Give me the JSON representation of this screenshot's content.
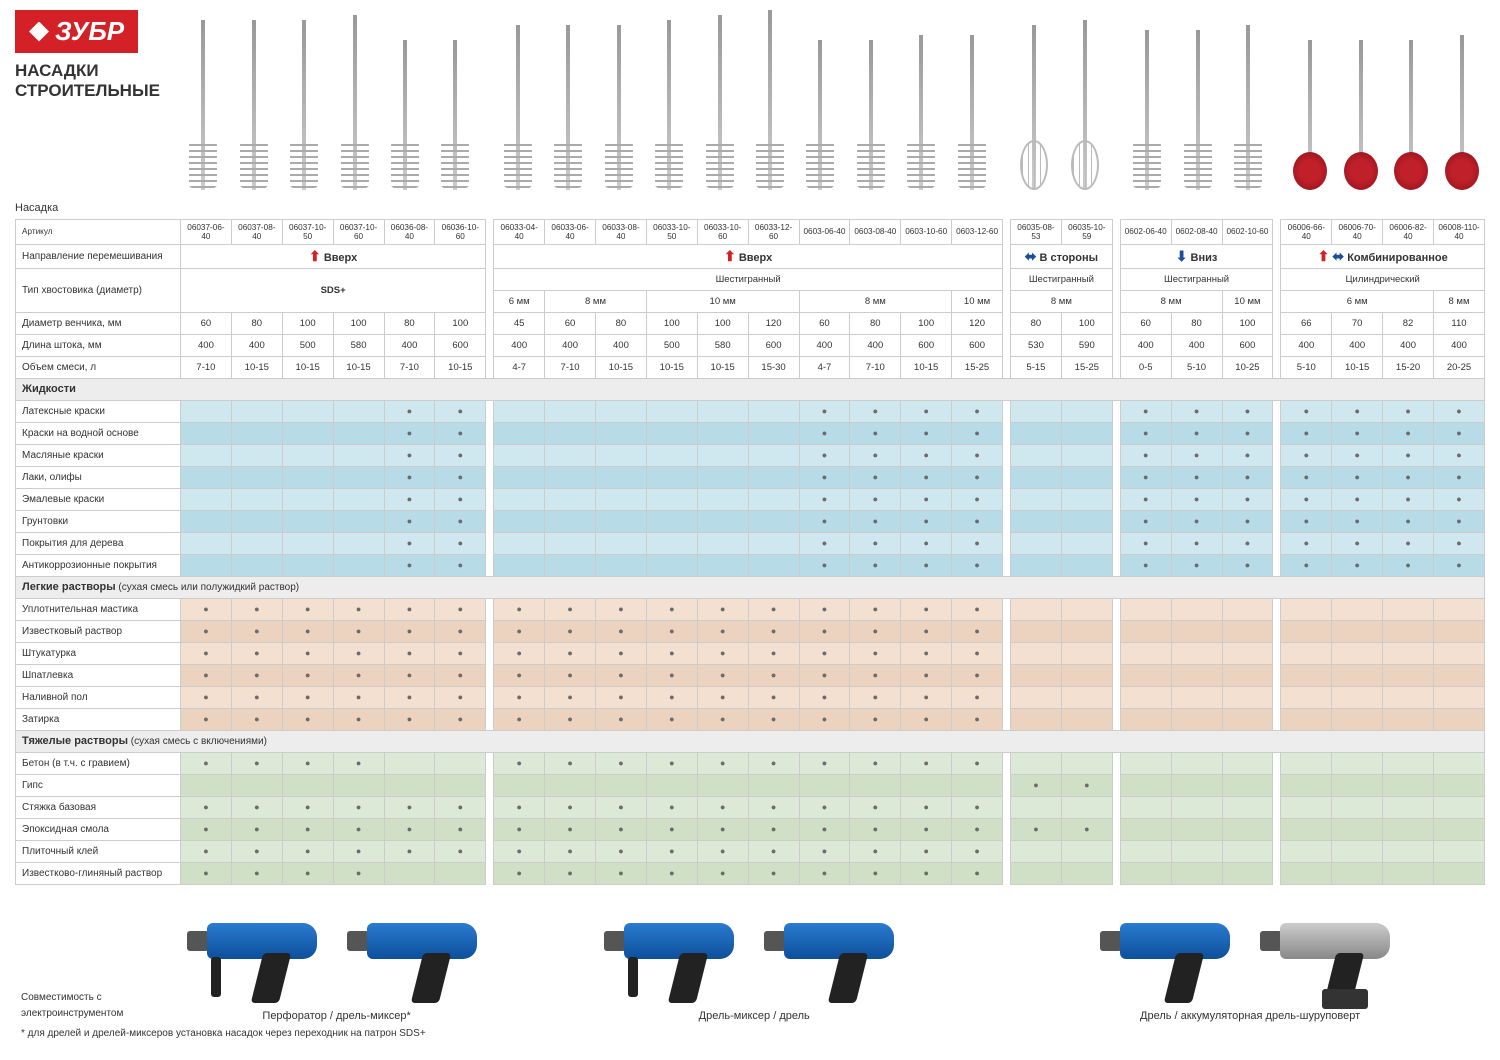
{
  "brand": "ЗУБР",
  "title_line1": "НАСАДКИ",
  "title_line2": "СТРОИТЕЛЬНЫЕ",
  "nasadka_label": "Насадка",
  "row_labels": {
    "artikul": "Артикул",
    "direction": "Направление перемешивания",
    "shank": "Тип хвостовика (диаметр)",
    "diameter": "Диаметр венчика, мм",
    "length": "Длина штока, мм",
    "volume": "Объем смеси, л",
    "compat": "Совместимость с электроинструментом"
  },
  "directions": {
    "g1": "Вверх",
    "g2": "Вверх",
    "g3": "В стороны",
    "g4": "Вниз",
    "g5": "Комбинированное"
  },
  "shank_types": {
    "sds": "SDS+",
    "hex": "Шестигранный",
    "cyl": "Цилиндрический"
  },
  "shank_sizes": {
    "s6": "6 мм",
    "s8": "8 мм",
    "s10": "10 мм"
  },
  "artikuls": [
    "06037-06-40",
    "06037-08-40",
    "06037-10-50",
    "06037-10-60",
    "06036-08-40",
    "06036-10-60",
    "06033-04-40",
    "06033-06-40",
    "06033-08-40",
    "06033-10-50",
    "06033-10-60",
    "06033-12-60",
    "0603-06-40",
    "0603-08-40",
    "0603-10-60",
    "0603-12-60",
    "06035-08-53",
    "06035-10-59",
    "0602-06-40",
    "0602-08-40",
    "0602-10-60",
    "06006-66-40",
    "06006-70-40",
    "06006-82-40",
    "06008-110-40"
  ],
  "diameters": [
    "60",
    "80",
    "100",
    "100",
    "80",
    "100",
    "45",
    "60",
    "80",
    "100",
    "100",
    "120",
    "60",
    "80",
    "100",
    "120",
    "80",
    "100",
    "60",
    "80",
    "100",
    "66",
    "70",
    "82",
    "110"
  ],
  "lengths": [
    "400",
    "400",
    "500",
    "580",
    "400",
    "600",
    "400",
    "400",
    "400",
    "500",
    "580",
    "600",
    "400",
    "400",
    "600",
    "600",
    "530",
    "590",
    "400",
    "400",
    "600",
    "400",
    "400",
    "400",
    "400"
  ],
  "volumes": [
    "7-10",
    "10-15",
    "10-15",
    "10-15",
    "7-10",
    "10-15",
    "4-7",
    "7-10",
    "10-15",
    "10-15",
    "10-15",
    "15-30",
    "4-7",
    "7-10",
    "10-15",
    "15-25",
    "5-15",
    "15-25",
    "0-5",
    "5-10",
    "10-25",
    "5-10",
    "10-15",
    "15-20",
    "20-25"
  ],
  "sections": [
    {
      "key": "liquids",
      "title": "Жидкости",
      "suffix": "",
      "palette": "liquid",
      "rows": [
        {
          "label": "Латексные краски",
          "dots": [
            0,
            0,
            0,
            0,
            1,
            1,
            0,
            0,
            0,
            0,
            0,
            0,
            1,
            1,
            1,
            1,
            0,
            0,
            1,
            1,
            1,
            1,
            1,
            1,
            1
          ]
        },
        {
          "label": "Краски на водной основе",
          "dots": [
            0,
            0,
            0,
            0,
            1,
            1,
            0,
            0,
            0,
            0,
            0,
            0,
            1,
            1,
            1,
            1,
            0,
            0,
            1,
            1,
            1,
            1,
            1,
            1,
            1
          ]
        },
        {
          "label": "Масляные краски",
          "dots": [
            0,
            0,
            0,
            0,
            1,
            1,
            0,
            0,
            0,
            0,
            0,
            0,
            1,
            1,
            1,
            1,
            0,
            0,
            1,
            1,
            1,
            1,
            1,
            1,
            1
          ]
        },
        {
          "label": "Лаки, олифы",
          "dots": [
            0,
            0,
            0,
            0,
            1,
            1,
            0,
            0,
            0,
            0,
            0,
            0,
            1,
            1,
            1,
            1,
            0,
            0,
            1,
            1,
            1,
            1,
            1,
            1,
            1
          ]
        },
        {
          "label": "Эмалевые краски",
          "dots": [
            0,
            0,
            0,
            0,
            1,
            1,
            0,
            0,
            0,
            0,
            0,
            0,
            1,
            1,
            1,
            1,
            0,
            0,
            1,
            1,
            1,
            1,
            1,
            1,
            1
          ]
        },
        {
          "label": "Грунтовки",
          "dots": [
            0,
            0,
            0,
            0,
            1,
            1,
            0,
            0,
            0,
            0,
            0,
            0,
            1,
            1,
            1,
            1,
            0,
            0,
            1,
            1,
            1,
            1,
            1,
            1,
            1
          ]
        },
        {
          "label": "Покрытия для дерева",
          "dots": [
            0,
            0,
            0,
            0,
            1,
            1,
            0,
            0,
            0,
            0,
            0,
            0,
            1,
            1,
            1,
            1,
            0,
            0,
            1,
            1,
            1,
            1,
            1,
            1,
            1
          ]
        },
        {
          "label": "Антикоррозионные покрытия",
          "dots": [
            0,
            0,
            0,
            0,
            1,
            1,
            0,
            0,
            0,
            0,
            0,
            0,
            1,
            1,
            1,
            1,
            0,
            0,
            1,
            1,
            1,
            1,
            1,
            1,
            1
          ]
        }
      ]
    },
    {
      "key": "light",
      "title": "Легкие растворы",
      "suffix": " (сухая смесь или полужидкий раствор)",
      "palette": "light",
      "rows": [
        {
          "label": "Уплотнительная мастика",
          "dots": [
            1,
            1,
            1,
            1,
            1,
            1,
            1,
            1,
            1,
            1,
            1,
            1,
            1,
            1,
            1,
            1,
            0,
            0,
            0,
            0,
            0,
            0,
            0,
            0,
            0
          ]
        },
        {
          "label": "Известковый раствор",
          "dots": [
            1,
            1,
            1,
            1,
            1,
            1,
            1,
            1,
            1,
            1,
            1,
            1,
            1,
            1,
            1,
            1,
            0,
            0,
            0,
            0,
            0,
            0,
            0,
            0,
            0
          ]
        },
        {
          "label": "Штукатурка",
          "dots": [
            1,
            1,
            1,
            1,
            1,
            1,
            1,
            1,
            1,
            1,
            1,
            1,
            1,
            1,
            1,
            1,
            0,
            0,
            0,
            0,
            0,
            0,
            0,
            0,
            0
          ]
        },
        {
          "label": "Шпатлевка",
          "dots": [
            1,
            1,
            1,
            1,
            1,
            1,
            1,
            1,
            1,
            1,
            1,
            1,
            1,
            1,
            1,
            1,
            0,
            0,
            0,
            0,
            0,
            0,
            0,
            0,
            0
          ]
        },
        {
          "label": "Наливной пол",
          "dots": [
            1,
            1,
            1,
            1,
            1,
            1,
            1,
            1,
            1,
            1,
            1,
            1,
            1,
            1,
            1,
            1,
            0,
            0,
            0,
            0,
            0,
            0,
            0,
            0,
            0
          ]
        },
        {
          "label": "Затирка",
          "dots": [
            1,
            1,
            1,
            1,
            1,
            1,
            1,
            1,
            1,
            1,
            1,
            1,
            1,
            1,
            1,
            1,
            0,
            0,
            0,
            0,
            0,
            0,
            0,
            0,
            0
          ]
        }
      ]
    },
    {
      "key": "heavy",
      "title": "Тяжелые растворы",
      "suffix": " (сухая смесь с включениями)",
      "palette": "heavy",
      "rows": [
        {
          "label": "Бетон (в т.ч. с гравием)",
          "dots": [
            1,
            1,
            1,
            1,
            0,
            0,
            1,
            1,
            1,
            1,
            1,
            1,
            1,
            1,
            1,
            1,
            0,
            0,
            0,
            0,
            0,
            0,
            0,
            0,
            0
          ]
        },
        {
          "label": "Гипс",
          "dots": [
            0,
            0,
            0,
            0,
            0,
            0,
            0,
            0,
            0,
            0,
            0,
            0,
            0,
            0,
            0,
            0,
            1,
            1,
            0,
            0,
            0,
            0,
            0,
            0,
            0
          ]
        },
        {
          "label": "Стяжка базовая",
          "dots": [
            1,
            1,
            1,
            1,
            1,
            1,
            1,
            1,
            1,
            1,
            1,
            1,
            1,
            1,
            1,
            1,
            0,
            0,
            0,
            0,
            0,
            0,
            0,
            0,
            0
          ]
        },
        {
          "label": "Эпоксидная смола",
          "dots": [
            1,
            1,
            1,
            1,
            1,
            1,
            1,
            1,
            1,
            1,
            1,
            1,
            1,
            1,
            1,
            1,
            1,
            1,
            0,
            0,
            0,
            0,
            0,
            0,
            0
          ]
        },
        {
          "label": "Плиточный клей",
          "dots": [
            1,
            1,
            1,
            1,
            1,
            1,
            1,
            1,
            1,
            1,
            1,
            1,
            1,
            1,
            1,
            1,
            0,
            0,
            0,
            0,
            0,
            0,
            0,
            0,
            0
          ]
        },
        {
          "label": "Известково-глиняный раствор",
          "dots": [
            1,
            1,
            1,
            1,
            0,
            0,
            1,
            1,
            1,
            1,
            1,
            1,
            1,
            1,
            1,
            1,
            0,
            0,
            0,
            0,
            0,
            0,
            0,
            0,
            0
          ]
        }
      ]
    }
  ],
  "tools": {
    "g1": "Перфоратор / дрель-миксер*",
    "g2": "Дрель-миксер / дрель",
    "g3": "Дрель / аккумуляторная дрель-шуруповерт"
  },
  "footnote": "* для дрелей и дрелей-миксеров установка насадок через переходник на патрон SDS+",
  "groups": [
    6,
    10,
    2,
    3,
    4
  ],
  "mixer_heights": [
    170,
    170,
    170,
    175,
    150,
    150,
    165,
    165,
    165,
    170,
    175,
    180,
    150,
    150,
    155,
    155,
    165,
    170,
    160,
    160,
    165,
    150,
    150,
    150,
    155
  ],
  "mixer_head_class": [
    "spiral",
    "spiral",
    "spiral",
    "spiral",
    "spiral",
    "spiral",
    "spiral",
    "spiral",
    "spiral",
    "spiral",
    "spiral",
    "spiral",
    "spiral",
    "spiral",
    "spiral",
    "spiral",
    "cage",
    "cage",
    "spiral",
    "spiral",
    "spiral",
    "red-head",
    "red-head",
    "red-head",
    "red-head"
  ],
  "colors": {
    "brand_red": "#d42027",
    "arrow_blue": "#1b4f9b",
    "liquid_even": "#cfe7ef",
    "liquid_odd": "#b7dce8",
    "light_even": "#f3e0d0",
    "light_odd": "#ecd3bf",
    "heavy_even": "#dce9d6",
    "heavy_odd": "#cfe0c7",
    "border": "#cccccc",
    "dot": "#6b6b6b"
  }
}
